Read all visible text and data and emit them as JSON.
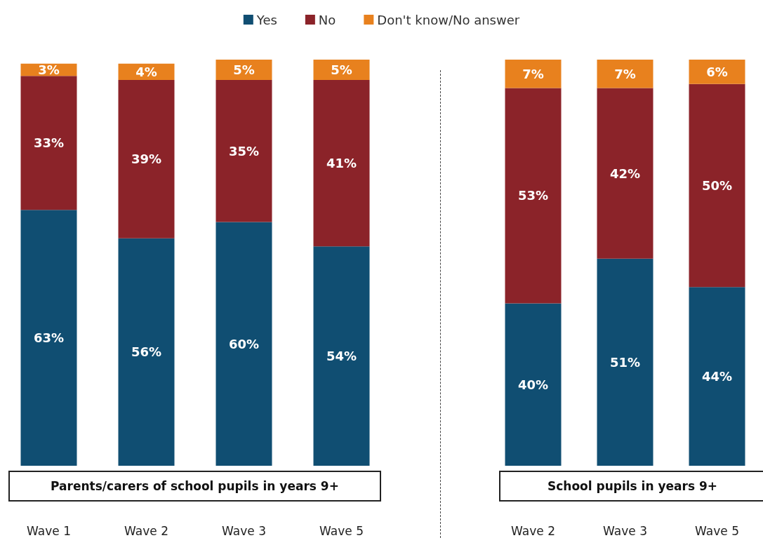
{
  "chart_data": [
    {
      "type": "bar",
      "title": "Parents/carers of school pupils in years 9+",
      "categories": [
        "Wave 1",
        "Wave 2",
        "Wave 3",
        "Wave 5"
      ],
      "stacked": true,
      "legend": "top",
      "series": [
        {
          "name": "Yes",
          "color": "#104e72",
          "values": [
            63,
            56,
            60,
            54
          ],
          "value_labels": [
            "63%",
            "56%",
            "60%",
            "54%"
          ]
        },
        {
          "name": "No",
          "color": "#8b2329",
          "values": [
            33,
            39,
            35,
            41
          ],
          "value_labels": [
            "33%",
            "39%",
            "35%",
            "41%"
          ]
        },
        {
          "name": "Don't know/No answer",
          "color": "#e8811e",
          "values": [
            3,
            4,
            5,
            5
          ],
          "value_labels": [
            "3%",
            "4%",
            "5%",
            "5%"
          ]
        }
      ]
    },
    {
      "type": "bar",
      "title": "School pupils in years 9+",
      "categories": [
        "Wave 2",
        "Wave 3",
        "Wave 5"
      ],
      "stacked": true,
      "series": [
        {
          "color": "#104e72",
          "values": [
            40,
            51,
            44
          ],
          "value_labels": [
            "40%",
            "51%",
            "44%"
          ]
        },
        {
          "color": "#8b2329",
          "values": [
            53,
            42,
            50
          ],
          "value_labels": [
            "53%",
            "42%",
            "50%"
          ]
        },
        {
          "color": "#e8811e",
          "values": [
            7,
            7,
            6
          ],
          "value_labels": [
            "7%",
            "7%",
            "6%"
          ]
        }
      ]
    }
  ]
}
